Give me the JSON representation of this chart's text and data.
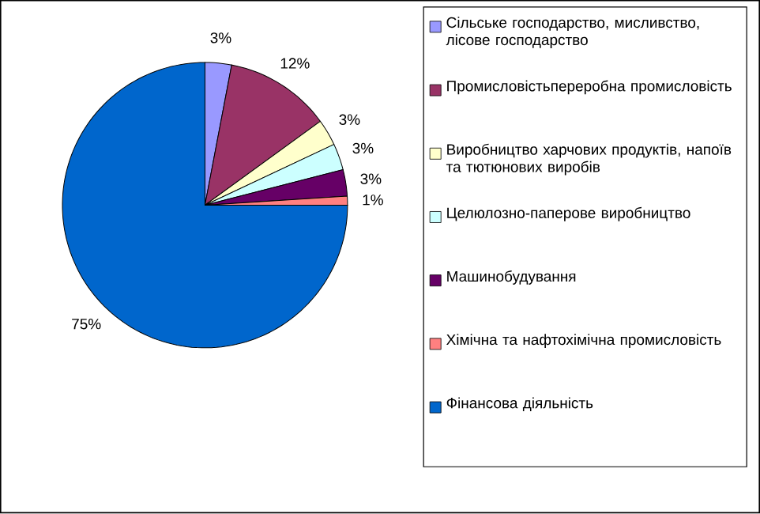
{
  "chart_data": {
    "type": "pie",
    "categories": [
      "Сільське господарство, мисливство, лісове господарство",
      "Промисловістьпереробна промисловість",
      "Виробництво харчових продуктів, напоїв та тютюнових виробів",
      "Целюлозно-паперове виробництво",
      "Машинобудування",
      "Хімічна та нафтохімічна промисловість",
      "Фінансова діяльність"
    ],
    "values": [
      3,
      12,
      3,
      3,
      3,
      1,
      75
    ],
    "value_labels": [
      "3%",
      "12%",
      "3%",
      "3%",
      "3%",
      "1%",
      "75%"
    ],
    "colors": [
      "#9999ff",
      "#993366",
      "#ffffcc",
      "#ccffff",
      "#660066",
      "#ff8080",
      "#0066cc"
    ],
    "legend": "right"
  }
}
